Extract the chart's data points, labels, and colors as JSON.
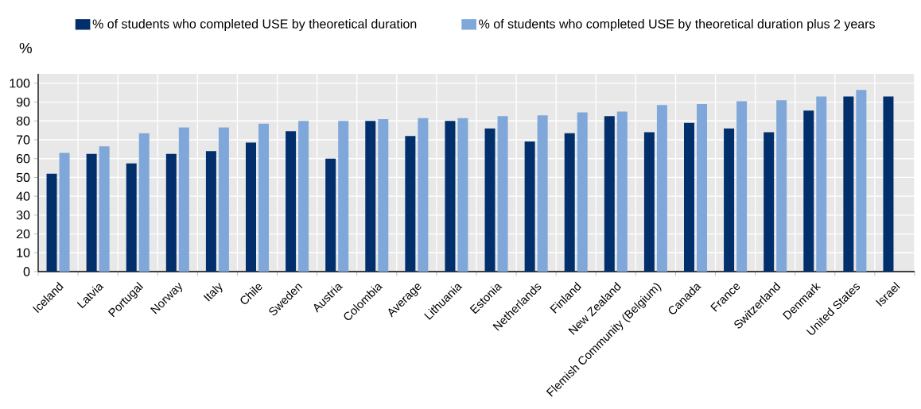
{
  "chart_data": {
    "type": "bar",
    "ylabel": "%",
    "categories": [
      "Iceland",
      "Latvia",
      "Portugal",
      "Norway",
      "Italy",
      "Chile",
      "Sweden",
      "Austria",
      "Colombia",
      "Average",
      "Lithuania",
      "Estonia",
      "Netherlands",
      "Finland",
      "New Zealand",
      "Flemish Community (Belgium)",
      "Canada",
      "France",
      "Switzerland",
      "Denmark",
      "United States",
      "Israel"
    ],
    "series": [
      {
        "name": "% of students who completed USE by theoretical duration",
        "color": "#002f6c",
        "values": [
          52,
          62.5,
          57.5,
          62.5,
          64,
          68.5,
          74.5,
          60,
          80,
          72,
          80,
          76,
          69,
          73.5,
          82.5,
          74,
          79,
          76,
          74,
          85.5,
          93,
          93
        ]
      },
      {
        "name": "% of students who completed USE by theoretical duration plus 2 years",
        "color": "#7fa7d9",
        "values": [
          63,
          66.5,
          73.5,
          76.5,
          76.5,
          78.5,
          80,
          80,
          81,
          81.5,
          81.5,
          82.5,
          83,
          84.5,
          85,
          88.5,
          89,
          90.5,
          91,
          93,
          96.5,
          null
        ]
      }
    ],
    "ylim": [
      0,
      105
    ],
    "yticks": [
      0,
      10,
      20,
      30,
      40,
      50,
      60,
      70,
      80,
      90,
      100
    ],
    "grid": true,
    "legend": "top"
  }
}
